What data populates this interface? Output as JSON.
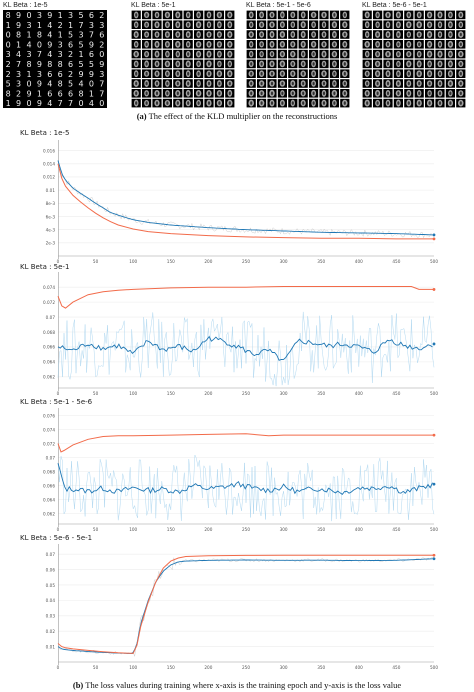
{
  "figure_top": {
    "panels": [
      {
        "label": "KL Beta : 1e-5"
      },
      {
        "label": "KL Beta : 5e-1"
      },
      {
        "label": "KL Beta : 5e-1 - 5e-6"
      },
      {
        "label": "KL Beta : 5e-6 - 5e-1"
      }
    ],
    "caption_tag": "(a)",
    "caption_text": "The effect of the KLD multiplier on the reconstructions"
  },
  "figure_bottom": {
    "caption_tag": "(b)",
    "caption_text": "The loss values during training where x-axis is the training epoch and y-axis is the loss value"
  },
  "colors": {
    "smoothed": "#1f77b4",
    "raw": "#a9d4ee",
    "val": "#f26b4a",
    "raw_gray": "#c8c8c8"
  },
  "chart_data": [
    {
      "type": "line",
      "title": "KL Beta : 1e-5",
      "xlim": [
        0,
        500
      ],
      "x_ticks": [
        "0",
        "50",
        "100",
        "150",
        "200",
        "250",
        "300",
        "350",
        "400",
        "450",
        "500"
      ],
      "ylim": [
        0,
        0.017
      ],
      "y_ticks": [
        "0.016",
        "0.014",
        "0.012",
        "0.01",
        "8e-3",
        "6e-3",
        "4e-3",
        "2e-3"
      ],
      "y_tick_values": [
        0.016,
        0.014,
        0.012,
        0.01,
        0.008,
        0.006,
        0.004,
        0.002
      ],
      "series": [
        {
          "x": [
            0,
            5,
            10,
            20,
            30,
            40,
            50,
            60,
            70,
            80,
            100,
            120,
            150,
            200,
            250,
            300,
            350,
            400,
            450,
            500
          ],
          "y": [
            0.0145,
            0.0125,
            0.0115,
            0.0103,
            0.0095,
            0.0088,
            0.008,
            0.0073,
            0.0066,
            0.0062,
            0.0055,
            0.0051,
            0.0047,
            0.0043,
            0.004,
            0.0038,
            0.0036,
            0.0035,
            0.0034,
            0.0032
          ]
        },
        {
          "x": [
            0,
            5,
            10,
            20,
            30,
            40,
            50,
            60,
            70,
            80,
            100,
            120,
            150,
            200,
            250,
            300,
            350,
            400,
            450,
            500
          ],
          "y": [
            0.014,
            0.0118,
            0.0106,
            0.0092,
            0.0082,
            0.0073,
            0.0065,
            0.0058,
            0.0052,
            0.0047,
            0.0041,
            0.0037,
            0.0034,
            0.0031,
            0.0029,
            0.0028,
            0.0027,
            0.0027,
            0.0026,
            0.0026
          ]
        }
      ]
    },
    {
      "type": "line",
      "title": "KL Beta : 5e-1",
      "xlim": [
        0,
        500
      ],
      "x_ticks": [
        "0",
        "50",
        "100",
        "150",
        "200",
        "250",
        "300",
        "350",
        "400",
        "450",
        "500"
      ],
      "ylim": [
        0.0605,
        0.0755
      ],
      "y_ticks": [
        "0.074",
        "0.072",
        "0.07",
        "0.068",
        "0.066",
        "0.064",
        "0.062"
      ],
      "y_tick_values": [
        0.074,
        0.072,
        0.07,
        0.068,
        0.066,
        0.064,
        0.062
      ],
      "series": [
        {
          "x": [
            0,
            20,
            40,
            60,
            80,
            100,
            120,
            140,
            160,
            180,
            200,
            220,
            240,
            260,
            280,
            300,
            320,
            340,
            360,
            380,
            400,
            420,
            440,
            460,
            480,
            500
          ],
          "y": [
            0.066,
            0.0655,
            0.0665,
            0.0658,
            0.0662,
            0.065,
            0.0668,
            0.0656,
            0.0661,
            0.0654,
            0.0672,
            0.0668,
            0.066,
            0.065,
            0.0655,
            0.064,
            0.0668,
            0.0665,
            0.0661,
            0.0664,
            0.066,
            0.0653,
            0.067,
            0.0662,
            0.0658,
            0.0664
          ]
        },
        {
          "x": [
            0,
            5,
            10,
            20,
            40,
            60,
            80,
            100,
            150,
            200,
            250,
            300,
            350,
            400,
            450,
            470,
            480,
            500
          ],
          "y": [
            0.0728,
            0.0715,
            0.0712,
            0.072,
            0.073,
            0.0734,
            0.0736,
            0.0737,
            0.0739,
            0.074,
            0.074,
            0.0741,
            0.0741,
            0.0741,
            0.0741,
            0.0741,
            0.0737,
            0.0737
          ]
        }
      ]
    },
    {
      "type": "line",
      "title": "KL Beta : 5e-1 - 5e-6",
      "xlim": [
        0,
        500
      ],
      "x_ticks": [
        "0",
        "50",
        "100",
        "150",
        "200",
        "250",
        "300",
        "350",
        "400",
        "450",
        "500"
      ],
      "ylim": [
        0.0605,
        0.0765
      ],
      "y_ticks": [
        "0.076",
        "0.074",
        "0.072",
        "0.07",
        "0.068",
        "0.066",
        "0.064",
        "0.062"
      ],
      "y_tick_values": [
        0.076,
        0.074,
        0.072,
        0.07,
        0.068,
        0.066,
        0.064,
        0.062
      ],
      "series": [
        {
          "x": [
            0,
            3,
            6,
            10,
            20,
            40,
            60,
            80,
            100,
            120,
            140,
            160,
            180,
            200,
            220,
            240,
            260,
            280,
            300,
            320,
            340,
            360,
            380,
            400,
            420,
            440,
            460,
            480,
            500
          ],
          "y": [
            0.069,
            0.068,
            0.0665,
            0.0655,
            0.0655,
            0.0652,
            0.0656,
            0.0651,
            0.0657,
            0.0653,
            0.0655,
            0.0651,
            0.066,
            0.0655,
            0.0658,
            0.0662,
            0.0656,
            0.0653,
            0.0658,
            0.0651,
            0.0656,
            0.0654,
            0.065,
            0.0657,
            0.0656,
            0.066,
            0.065,
            0.0656,
            0.0662
          ]
        },
        {
          "x": [
            0,
            4,
            8,
            20,
            40,
            60,
            80,
            100,
            150,
            200,
            250,
            280,
            300,
            350,
            400,
            450,
            500
          ],
          "y": [
            0.072,
            0.0708,
            0.071,
            0.0718,
            0.0726,
            0.073,
            0.0731,
            0.0731,
            0.0732,
            0.0733,
            0.0734,
            0.0731,
            0.0732,
            0.0732,
            0.0732,
            0.0732,
            0.0732
          ]
        }
      ]
    },
    {
      "type": "line",
      "title": "KL Beta : 5e-6 - 5e-1",
      "xlim": [
        0,
        500
      ],
      "x_ticks": [
        "0",
        "50",
        "100",
        "150",
        "200",
        "250",
        "300",
        "350",
        "400",
        "450",
        "500"
      ],
      "ylim": [
        0,
        0.074
      ],
      "y_ticks": [
        "0.07",
        "0.06",
        "0.05",
        "0.04",
        "0.03",
        "0.02",
        "0.01"
      ],
      "y_tick_values": [
        0.07,
        0.06,
        0.05,
        0.04,
        0.03,
        0.02,
        0.01
      ],
      "series": [
        {
          "x": [
            0,
            5,
            10,
            20,
            40,
            60,
            80,
            100,
            105,
            110,
            120,
            130,
            140,
            150,
            160,
            170,
            200,
            250,
            300,
            350,
            400,
            450,
            500
          ],
          "y": [
            0.01,
            0.0085,
            0.008,
            0.0075,
            0.0068,
            0.0062,
            0.0058,
            0.0055,
            0.012,
            0.025,
            0.04,
            0.052,
            0.059,
            0.063,
            0.065,
            0.0655,
            0.066,
            0.0662,
            0.066,
            0.0661,
            0.0658,
            0.066,
            0.067
          ]
        },
        {
          "x": [
            0,
            5,
            10,
            20,
            40,
            60,
            80,
            100,
            105,
            110,
            120,
            130,
            140,
            150,
            160,
            170,
            200,
            250,
            300,
            350,
            400,
            450,
            500
          ],
          "y": [
            0.012,
            0.01,
            0.0092,
            0.0085,
            0.0075,
            0.0067,
            0.006,
            0.0056,
            0.011,
            0.023,
            0.039,
            0.052,
            0.061,
            0.0655,
            0.0675,
            0.0685,
            0.069,
            0.0692,
            0.0693,
            0.0693,
            0.0693,
            0.0693,
            0.0693
          ]
        }
      ]
    }
  ]
}
